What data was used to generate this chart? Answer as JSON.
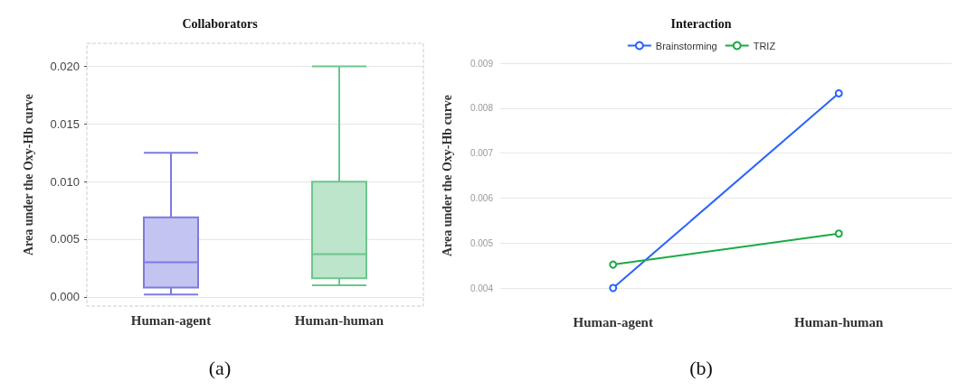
{
  "chart_data": [
    {
      "type": "box",
      "title": "Collaborators",
      "ylabel": "Area under the Oxy-Hb curve",
      "categories": [
        "Human-agent",
        "Human-human"
      ],
      "boxes": [
        {
          "low": 0.0002,
          "q1": 0.0008,
          "median": 0.003,
          "q3": 0.0069,
          "high": 0.0125
        },
        {
          "low": 0.001,
          "q1": 0.0016,
          "median": 0.0037,
          "q3": 0.01,
          "high": 0.02
        }
      ],
      "colors": [
        "#7b7be0",
        "#6cc58c"
      ],
      "ylim": [
        -0.0008,
        0.022
      ],
      "yticks": [
        {
          "value": 0,
          "label": "0.000"
        },
        0.005,
        {
          "value": 0.01,
          "label": "0.010"
        },
        0.015,
        {
          "value": 0.02,
          "label": "0.020"
        }
      ],
      "grid": "y",
      "annotations": [
        "(a)"
      ]
    },
    {
      "type": "line",
      "title": "Interaction",
      "ylabel": "Area under the Oxy-Hb curve",
      "categories": [
        "Human-agent",
        "Human-human"
      ],
      "series": [
        {
          "name": "Brainstorming",
          "color": "#2962ff",
          "values": [
            0.004,
            0.00833
          ]
        },
        {
          "name": "TRIZ",
          "color": "#1aaa44",
          "values": [
            0.00452,
            0.00521
          ]
        }
      ],
      "ylim": [
        0.004,
        0.009
      ],
      "yticks": [
        0.004,
        0.005,
        0.006,
        0.007,
        0.008,
        0.009
      ],
      "grid": "y",
      "legend": "top",
      "marker": "circle",
      "annotations": [
        "(b)"
      ]
    }
  ]
}
